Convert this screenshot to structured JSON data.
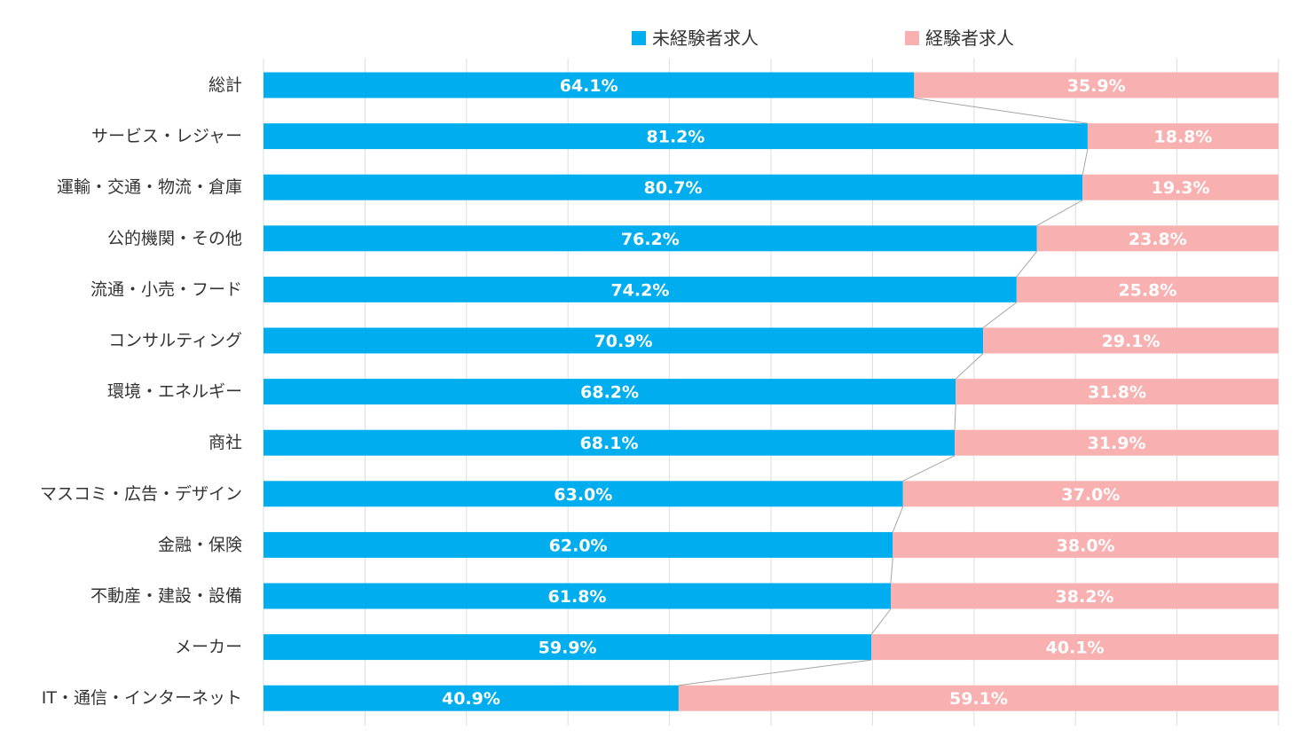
{
  "chart_data": {
    "type": "bar",
    "orientation": "horizontal",
    "stacked": true,
    "percent_stacked": true,
    "title": "",
    "xlabel": "",
    "ylabel": "",
    "xlim": [
      0,
      100
    ],
    "grid": true,
    "legend_position": "top-center",
    "series_lines": true,
    "categories": [
      "総計",
      "サービス・レジャー",
      "運輸・交通・物流・倉庫",
      "公的機関・その他",
      "流通・小売・フード",
      "コンサルティング",
      "環境・エネルギー",
      "商社",
      "マスコミ・広告・デザイン",
      "金融・保険",
      "不動産・建設・設備",
      "メーカー",
      "IT・通信・インターネット"
    ],
    "series": [
      {
        "name": "未経験者求人",
        "color": "#00aeef",
        "values": [
          64.1,
          81.2,
          80.7,
          76.2,
          74.2,
          70.9,
          68.2,
          68.1,
          63.0,
          62.0,
          61.8,
          59.9,
          40.9
        ],
        "data_labels": [
          "64.1%",
          "81.2%",
          "80.7%",
          "76.2%",
          "74.2%",
          "70.9%",
          "68.2%",
          "68.1%",
          "63.0%",
          "62.0%",
          "61.8%",
          "59.9%",
          "40.9%"
        ]
      },
      {
        "name": "経験者求人",
        "color": "#f8b0b0",
        "values": [
          35.9,
          18.8,
          19.3,
          23.8,
          25.8,
          29.1,
          31.8,
          31.9,
          37.0,
          38.0,
          38.2,
          40.1,
          59.1
        ],
        "data_labels": [
          "35.9%",
          "18.8%",
          "19.3%",
          "23.8%",
          "25.8%",
          "29.1%",
          "31.8%",
          "31.9%",
          "37.0%",
          "38.0%",
          "38.2%",
          "40.1%",
          "59.1%"
        ]
      }
    ]
  },
  "colors": {
    "grid": "#dddddd",
    "series_line": "#a6a6a6",
    "text": "#333333"
  }
}
